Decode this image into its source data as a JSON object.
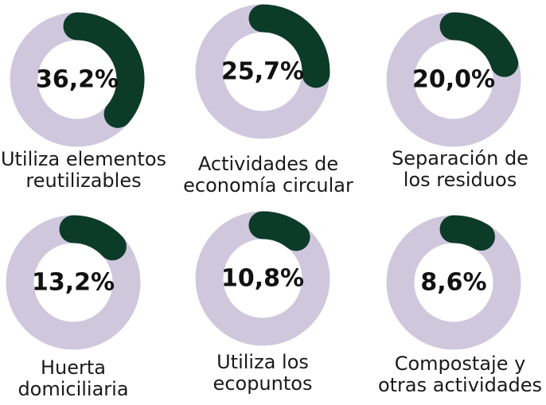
{
  "chart_data": {
    "type": "donut",
    "categories": [
      [
        "Utiliza elementos",
        "reutilizables"
      ],
      [
        "Actividades de",
        "economía circular"
      ],
      [
        "Separación de",
        "los residuos"
      ],
      [
        "Huerta",
        "domiciliaria"
      ],
      [
        "Utiliza los",
        "ecopuntos"
      ],
      [
        "Compostaje y",
        "otras actividades"
      ]
    ],
    "values": [
      36.2,
      25.7,
      20.0,
      13.2,
      10.8,
      8.6
    ],
    "value_labels": [
      "36,2%",
      "25,7%",
      "20,0%",
      "13,2%",
      "10,8%",
      "8,6%"
    ],
    "color": "#0d3b2a",
    "track_color": "#cfc8dd"
  }
}
